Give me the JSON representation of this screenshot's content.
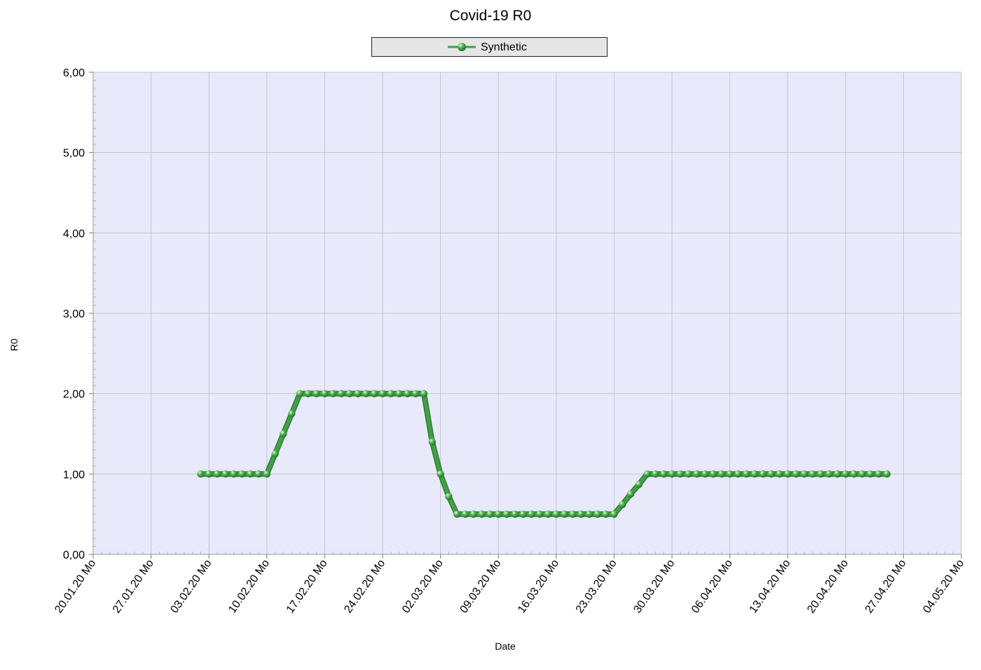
{
  "chart_data": {
    "type": "line",
    "title": "Covid-19 R0",
    "xlabel": "Date",
    "ylabel": "R0",
    "legend_position": "top-center",
    "grid": true,
    "ylim": [
      0,
      6
    ],
    "yticks": [
      "0,00",
      "1,00",
      "2,00",
      "3,00",
      "4,00",
      "5,00",
      "6,00"
    ],
    "xlim": [
      "20.01.20",
      "04.05.20"
    ],
    "xticks": [
      "20.01.20 Mo",
      "27.01.20 Mo",
      "03.02.20 Mo",
      "10.02.20 Mo",
      "17.02.20 Mo",
      "24.02.20 Mo",
      "02.03.20 Mo",
      "09.03.20 Mo",
      "16.03.20 Mo",
      "23.03.20 Mo",
      "30.03.20 Mo",
      "06.04.20 Mo",
      "13.04.20 Mo",
      "20.04.20 Mo",
      "27.04.20 Mo",
      "04.05.20 Mo"
    ],
    "colors": {
      "line": "#43a047",
      "marker": "#3c9a3f",
      "plot_background": "#e8eafc",
      "grid": "#c4c4c4"
    },
    "series": [
      {
        "name": "Synthetic",
        "x": [
          "02.02.20",
          "03.02.20",
          "04.02.20",
          "05.02.20",
          "06.02.20",
          "07.02.20",
          "08.02.20",
          "09.02.20",
          "10.02.20",
          "11.02.20",
          "12.02.20",
          "13.02.20",
          "14.02.20",
          "15.02.20",
          "16.02.20",
          "17.02.20",
          "18.02.20",
          "19.02.20",
          "20.02.20",
          "21.02.20",
          "22.02.20",
          "23.02.20",
          "24.02.20",
          "25.02.20",
          "26.02.20",
          "27.02.20",
          "28.02.20",
          "29.02.20",
          "01.03.20",
          "02.03.20",
          "03.03.20",
          "04.03.20",
          "05.03.20",
          "06.03.20",
          "07.03.20",
          "08.03.20",
          "09.03.20",
          "10.03.20",
          "11.03.20",
          "12.03.20",
          "13.03.20",
          "14.03.20",
          "15.03.20",
          "16.03.20",
          "17.03.20",
          "18.03.20",
          "19.03.20",
          "20.03.20",
          "21.03.20",
          "22.03.20",
          "23.03.20",
          "24.03.20",
          "25.03.20",
          "26.03.20",
          "27.03.20",
          "28.03.20",
          "29.03.20",
          "30.03.20",
          "31.03.20",
          "01.04.20",
          "02.04.20",
          "03.04.20",
          "04.04.20",
          "05.04.20",
          "06.04.20",
          "07.04.20",
          "08.04.20",
          "09.04.20",
          "10.04.20",
          "11.04.20",
          "12.04.20",
          "13.04.20",
          "14.04.20",
          "15.04.20",
          "16.04.20",
          "17.04.20",
          "18.04.20",
          "19.04.20",
          "20.04.20",
          "21.04.20",
          "22.04.20",
          "23.04.20",
          "24.04.20",
          "25.04.20"
        ],
        "values": [
          1.0,
          1.0,
          1.0,
          1.0,
          1.0,
          1.0,
          1.0,
          1.0,
          1.0,
          1.25,
          1.5,
          1.75,
          2.0,
          2.0,
          2.0,
          2.0,
          2.0,
          2.0,
          2.0,
          2.0,
          2.0,
          2.0,
          2.0,
          2.0,
          2.0,
          2.0,
          2.0,
          2.0,
          1.4,
          1.0,
          0.72,
          0.5,
          0.5,
          0.5,
          0.5,
          0.5,
          0.5,
          0.5,
          0.5,
          0.5,
          0.5,
          0.5,
          0.5,
          0.5,
          0.5,
          0.5,
          0.5,
          0.5,
          0.5,
          0.5,
          0.5,
          0.62,
          0.75,
          0.87,
          1.0,
          1.0,
          1.0,
          1.0,
          1.0,
          1.0,
          1.0,
          1.0,
          1.0,
          1.0,
          1.0,
          1.0,
          1.0,
          1.0,
          1.0,
          1.0,
          1.0,
          1.0,
          1.0,
          1.0,
          1.0,
          1.0,
          1.0,
          1.0,
          1.0,
          1.0,
          1.0,
          1.0,
          1.0,
          1.0
        ]
      }
    ]
  }
}
